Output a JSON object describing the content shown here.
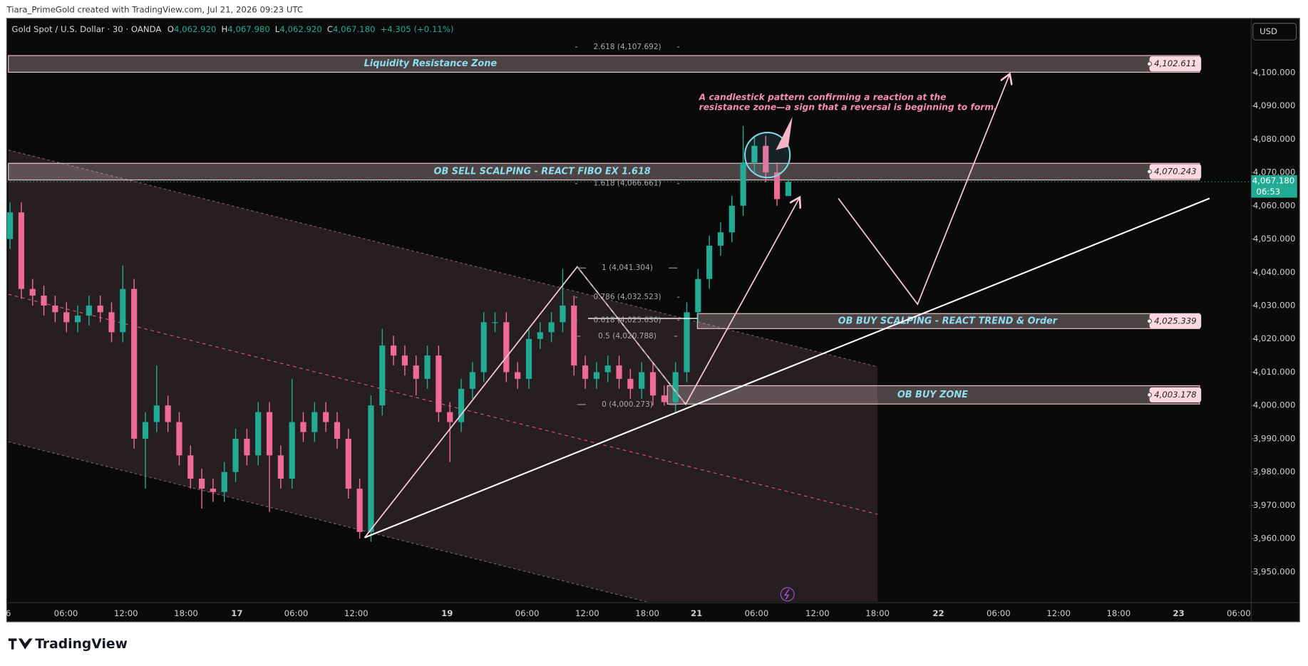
{
  "header": {
    "credit": "Tiara_PrimeGold created with TradingView.com, Jul 21, 2026 09:23 UTC"
  },
  "footer": {
    "logo": "TradingView"
  },
  "chart_data": {
    "type": "candlestick",
    "title": "Gold Spot / U.S. Dollar · 30 · OANDA",
    "ohlc_legend": [
      {
        "key": "O",
        "value": {
          "value": 4062.92,
          "label": "4,062.920"
        }
      },
      {
        "key": "H",
        "value": {
          "value": 4067.98,
          "label": "4,067.980"
        }
      },
      {
        "key": "L",
        "value": {
          "value": 4062.92,
          "label": "4,062.920"
        }
      },
      {
        "key": "C",
        "value": {
          "value": 4067.18,
          "label": "4,067.180"
        }
      }
    ],
    "change": "+4.305 (+0.11%)",
    "currency": "USD",
    "up_color": "#22ab94",
    "down_color": "#f06b94",
    "last_price": {
      "value": 4067.18,
      "label": "4,067.180"
    },
    "countdown": "06:53",
    "ylim": [
      3941,
      4116.3
    ],
    "yticks": [
      {
        "value": 3950,
        "label": "3,950.000"
      },
      {
        "value": 3960,
        "label": "3,960.000"
      },
      {
        "value": 3970,
        "label": "3,970.000"
      },
      {
        "value": 3980,
        "label": "3,980.000"
      },
      {
        "value": 3990,
        "label": "3,990.000"
      },
      {
        "value": 4000,
        "label": "4,000.000"
      },
      {
        "value": 4010,
        "label": "4,010.000"
      },
      {
        "value": 4020,
        "label": "4,020.000"
      },
      {
        "value": 4030,
        "label": "4,030.000"
      },
      {
        "value": 4040,
        "label": "4,040.000"
      },
      {
        "value": 4050,
        "label": "4,050.000"
      },
      {
        "value": 4060,
        "label": "4,060.000"
      },
      {
        "value": 4070,
        "label": "4,070.000"
      },
      {
        "value": 4080,
        "label": "4,080.000"
      },
      {
        "value": 4090,
        "label": "4,090.000"
      },
      {
        "value": 4100,
        "label": "4,100.000"
      }
    ],
    "xtick_labels": [
      "6",
      "06:00",
      "12:00",
      "18:00",
      "17",
      "06:00",
      "12:00",
      "19",
      "06:00",
      "12:00",
      "18:00",
      "21",
      "06:00",
      "12:00",
      "18:00",
      "22",
      "06:00",
      "12:00",
      "18:00",
      "23",
      "06:00"
    ],
    "candles": {
      "open": [
        4050,
        4058,
        4035,
        4033,
        4030,
        4028,
        4025,
        4027,
        4030,
        4028,
        4022,
        4035,
        3990,
        3995,
        4000,
        3995,
        3985,
        3978,
        3975,
        3974,
        3980,
        3990,
        3985,
        3998,
        3985,
        3978,
        3995,
        3992,
        3998,
        3995,
        3990,
        3975,
        3962,
        4000,
        4018,
        4015,
        4012,
        4008,
        4015,
        3998,
        3995,
        4005,
        4010,
        4025,
        4025,
        4010,
        4008,
        4020,
        4022,
        4025,
        4030,
        4012,
        4008,
        4010,
        4012,
        4008,
        4005,
        4010,
        4003,
        4001,
        4010,
        4028,
        4038,
        4048,
        4052,
        4060,
        4073,
        4078,
        4070,
        4062.92
      ],
      "high": [
        4061,
        4061,
        4038,
        4036,
        4033,
        4031,
        4030,
        4033,
        4033,
        4031,
        4042,
        4038,
        3998,
        4012,
        4003,
        3998,
        3988,
        3981,
        3978,
        3983,
        3993,
        3993,
        4001,
        4001,
        3988,
        4008,
        3998,
        4001,
        4001,
        3998,
        3993,
        3978,
        4003,
        4023,
        4021,
        4018,
        4015,
        4018,
        4018,
        4001,
        4008,
        4013,
        4028,
        4028,
        4028,
        4013,
        4023,
        4025,
        4028,
        4041,
        4033,
        4015,
        4013,
        4015,
        4015,
        4011,
        4013,
        4013,
        4006,
        4013,
        4031,
        4041,
        4051,
        4055,
        4063,
        4084,
        4081,
        4081,
        4073,
        4067.98
      ],
      "low": [
        4047,
        4032,
        4030,
        4027,
        4025,
        4022,
        4022,
        4024,
        4025,
        4019,
        4019,
        3987,
        3975,
        3992,
        3992,
        3982,
        3975,
        3969,
        3971,
        3971,
        3977,
        3982,
        3982,
        3968,
        3975,
        3975,
        3989,
        3989,
        3992,
        3987,
        3972,
        3960,
        3959,
        3997,
        4012,
        4009,
        4003,
        4005,
        3995,
        3983,
        3992,
        4002,
        4007,
        4022,
        4007,
        4005,
        4005,
        4017,
        4019,
        4022,
        4009,
        4005,
        4005,
        4007,
        4005,
        4002,
        4002,
        4000,
        4000,
        3998,
        4007,
        4025,
        4035,
        4045,
        4049,
        4057,
        4070,
        4067,
        4060,
        4062.92
      ],
      "close": [
        4058,
        4035,
        4033,
        4030,
        4028,
        4025,
        4027,
        4030,
        4028,
        4022,
        4035,
        3990,
        3995,
        4000,
        3995,
        3985,
        3978,
        3975,
        3974,
        3980,
        3990,
        3985,
        3998,
        3985,
        3978,
        3995,
        3992,
        3998,
        3995,
        3990,
        3975,
        3962,
        4000,
        4018,
        4015,
        4012,
        4008,
        4015,
        3998,
        3995,
        4005,
        4010,
        4025,
        4025,
        4010,
        4008,
        4020,
        4022,
        4025,
        4030,
        4012,
        4008,
        4010,
        4012,
        4008,
        4005,
        4010,
        4003,
        4001,
        4010,
        4028,
        4038,
        4048,
        4052,
        4060,
        4073,
        4078,
        4070,
        4062,
        4067.18
      ]
    },
    "zones": [
      {
        "name": "Liquidity Resistance Zone",
        "price": {
          "value": 4102.611,
          "label": "4,102.611"
        }
      },
      {
        "name": "OB SELL SCALPING - REACT FIBO EX 1.618",
        "price": {
          "value": 4070.243,
          "label": "4,070.243"
        }
      },
      {
        "name": "OB BUY SCALPING - REACT TREND & Order",
        "price": {
          "value": 4025.339,
          "label": "4,025.339"
        }
      },
      {
        "name": "OB BUY ZONE",
        "price": {
          "value": 4003.178,
          "label": "4,003.178"
        }
      }
    ],
    "fib_levels": [
      {
        "value": 4107.692,
        "label": "2.618 (4,107.692)"
      },
      {
        "value": 4066.661,
        "label": "1.618 (4,066.661)"
      },
      {
        "value": 4041.304,
        "label": "1 (4,041.304)"
      },
      {
        "value": 4032.523,
        "label": "0.786 (4,032.523)"
      },
      {
        "value": 4025.63,
        "label": "0.618 (4,025.630)"
      },
      {
        "value": 4020.788,
        "label": "0.5 (4,020.788)"
      },
      {
        "value": 4000.273,
        "label": "0 (4,000.273)"
      }
    ],
    "annotation": [
      "A candlestick pattern confirming a reaction at the",
      "resistance zone—a sign that a reversal is beginning to form."
    ]
  }
}
